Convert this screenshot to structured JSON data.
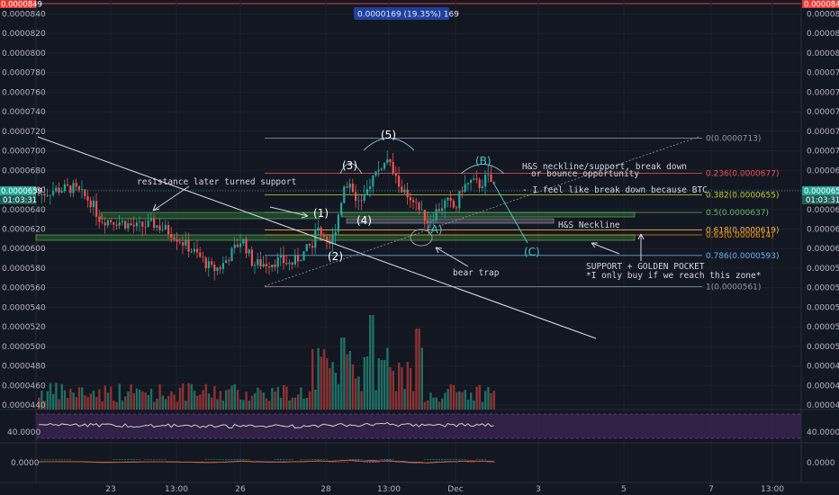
{
  "top_badge": "0.0000169 (19.35%) 169",
  "colors": {
    "background": "#131722",
    "up": "#26a69a",
    "down": "#ef5350",
    "vol_up": "#1f6f64",
    "vol_down": "#8a3334",
    "rsi_band": "#3b2450",
    "axis_text": "#b2b5be"
  },
  "chart_data": {
    "type": "candlestick",
    "price_axis": {
      "ticks": [
        "0.0000840",
        "0.0000820",
        "0.0000800",
        "0.0000780",
        "0.0000760",
        "0.0000740",
        "0.0000720",
        "0.0000700",
        "0.0000680",
        "0.0000660",
        "0.0000640",
        "0.0000620",
        "0.0000600",
        "0.0000580",
        "0.0000560",
        "0.0000540",
        "0.0000520",
        "0.0000500",
        "0.0000480",
        "0.0000460",
        "0.0000440"
      ],
      "current_price": "0.0000659",
      "countdown": "01:03:31",
      "top_marker": "0.0000849"
    },
    "time_axis": [
      "23",
      "13:00",
      "26",
      "28",
      "13:00",
      "Dec",
      "3",
      "5",
      "7",
      "13:00"
    ],
    "rsi": {
      "label": "40.0000"
    },
    "macd": {
      "label": "0.0000"
    },
    "fib_levels": [
      {
        "ratio": "0",
        "label": "0(0.0000713)",
        "price": 7.13e-05,
        "color": "#9598a1"
      },
      {
        "ratio": "0.236",
        "label": "0.236(0.0000677)",
        "price": 6.77e-05,
        "color": "#ef5350"
      },
      {
        "ratio": "0.382",
        "label": "0.382(0.0000655)",
        "price": 6.55e-05,
        "color": "#c0ca33"
      },
      {
        "ratio": "0.5",
        "label": "0.5(0.0000637)",
        "price": 6.37e-05,
        "color": "#66bb6a"
      },
      {
        "ratio": "0.618",
        "label": "0.618(0.0000619)",
        "price": 6.19e-05,
        "color": "#ffb74d"
      },
      {
        "ratio": "0.65",
        "label": "0.65(0.0000614)",
        "price": 6.14e-05,
        "color": "#ff9800"
      },
      {
        "ratio": "0.786",
        "label": "0.786(0.0000593)",
        "price": 5.93e-05,
        "color": "#64b5f6"
      },
      {
        "ratio": "1",
        "label": "1(0.0000561)",
        "price": 5.61e-05,
        "color": "#9598a1"
      }
    ],
    "waves": [
      "(1)",
      "(2)",
      "(3)",
      "(4)",
      "(5)",
      "(A)",
      "(B)",
      "(C)"
    ]
  },
  "annotations": {
    "resistance": "resistance later turned support",
    "hs_line1": "H&S neckline/support, break down",
    "hs_line2": "or bounce opportunity",
    "breakdown": "- I feel like break down because BTC",
    "neckline": "H&S Neckline",
    "bear_trap": "bear trap",
    "golden1": "SUPPORT + GOLDEN POCKET",
    "golden2": "*I only buy if we reach this zone*"
  }
}
